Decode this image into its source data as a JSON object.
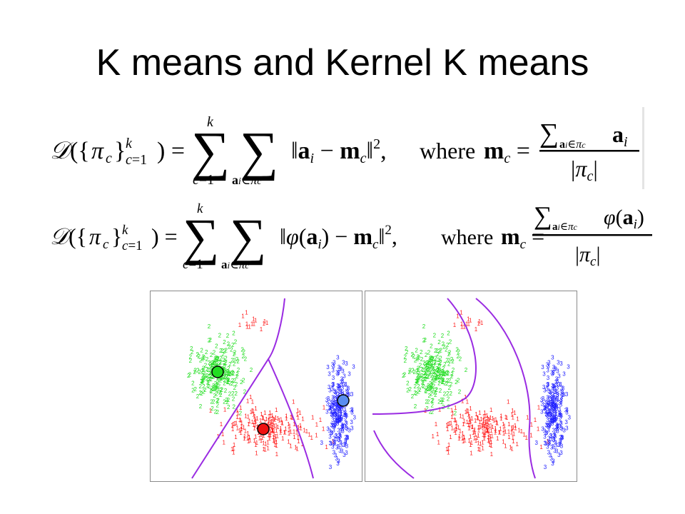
{
  "slide": {
    "title": "K means and Kernel K means"
  },
  "equations": {
    "kmeans": {
      "objective": "𝒟({π_c}_{c=1}^k) = Σ_{c=1}^k Σ_{a_i∈π_c} ‖a_i − m_c‖², where m_c = (Σ_{a_i∈π_c} a_i) / |π_c|",
      "term": "‖a_i − m_c‖²",
      "where_word": "where",
      "numerator": "Σ_{a_i∈π_c} a_i",
      "denominator": "|π_c|"
    },
    "kernel_kmeans": {
      "objective": "𝒟({π_c}_{c=1}^k) = Σ_{c=1}^k Σ_{a_i∈π_c} ‖φ(a_i) − m_c‖², where m_c = (Σ_{a_i∈π_c} φ(a_i)) / |π_c|",
      "term": "‖φ(a_i) − m_c‖²",
      "where_word": "where",
      "numerator": "Σ_{a_i∈π_c} φ(a_i)",
      "denominator": "|π_c|"
    }
  },
  "plots": {
    "cluster_labels": [
      "1",
      "2",
      "3"
    ],
    "colors": {
      "cluster_1": "#ff1a1a",
      "cluster_2": "#22dd22",
      "cluster_3": "#1a1aff",
      "boundary": "#9a2be2",
      "centroid_1": "#ee1111",
      "centroid_2": "#22dd22",
      "centroid_3": "#5a8df0"
    },
    "left_panel": {
      "method": "kmeans",
      "centroids": [
        "cluster_2",
        "cluster_1",
        "cluster_3"
      ]
    },
    "right_panel": {
      "method": "kernel_kmeans"
    }
  }
}
